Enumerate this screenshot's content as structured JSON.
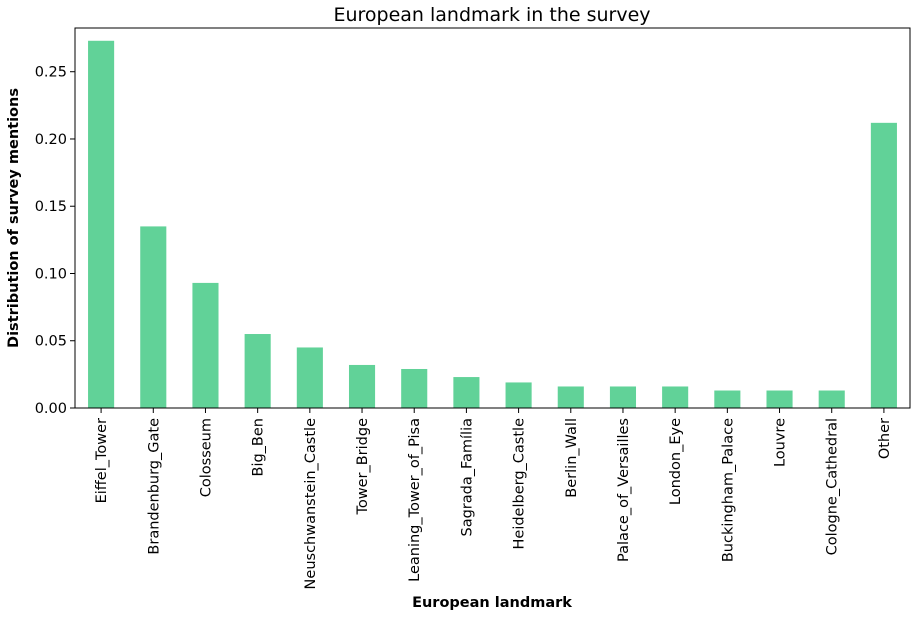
{
  "chart_data": {
    "type": "bar",
    "title": "European landmark in the survey",
    "xlabel": "European landmark",
    "ylabel": "Distribution of survey mentions",
    "categories": [
      "Eiffel_Tower",
      "Brandenburg_Gate",
      "Colosseum",
      "Big_Ben",
      "Neuschwanstein_Castle",
      "Tower_Bridge",
      "Leaning_Tower_of_Pisa",
      "Sagrada_Família",
      "Heidelberg_Castle",
      "Berlin_Wall",
      "Palace_of_Versailles",
      "London_Eye",
      "Buckingham_Palace",
      "Louvre",
      "Cologne_Cathedral",
      "Other"
    ],
    "values": [
      0.273,
      0.135,
      0.093,
      0.055,
      0.045,
      0.032,
      0.029,
      0.023,
      0.019,
      0.016,
      0.016,
      0.016,
      0.013,
      0.013,
      0.013,
      0.212
    ],
    "ylim": [
      0,
      0.2825
    ],
    "yticks": [
      "0.00",
      "0.05",
      "0.10",
      "0.15",
      "0.20",
      "0.25"
    ],
    "bar_color": "#61d298",
    "grid": false,
    "legend": "none"
  }
}
